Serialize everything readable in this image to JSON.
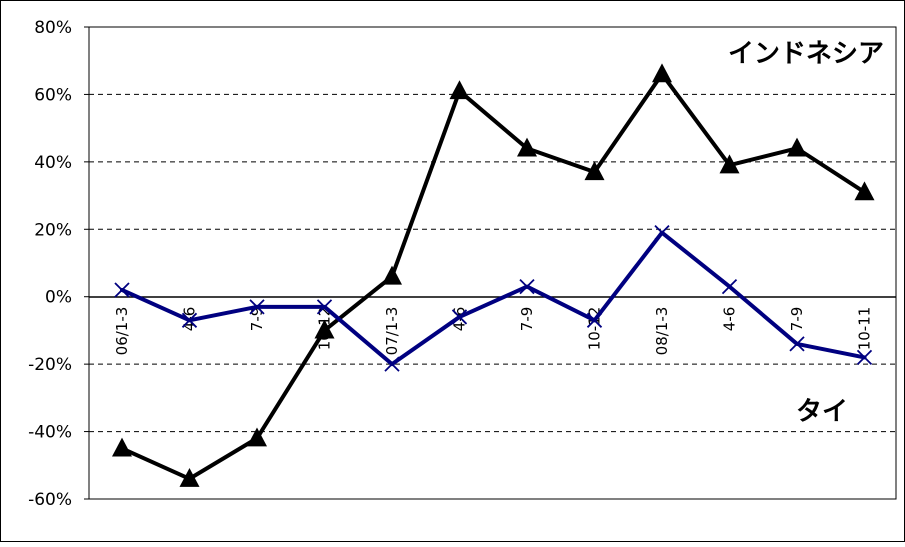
{
  "chart_data": {
    "type": "line",
    "categories": [
      "06/1-3",
      "4-6",
      "7-9",
      "10-12",
      "07/1-3",
      "4-6",
      "7-9",
      "10-12",
      "08/1-3",
      "4-6",
      "7-9",
      "10-11"
    ],
    "series": [
      {
        "name": "インドネシア",
        "color": "#000000",
        "marker": "triangle",
        "values": [
          -45,
          -54,
          -42,
          -10,
          6,
          61,
          44,
          37,
          66,
          39,
          44,
          31
        ]
      },
      {
        "name": "タイ",
        "color": "#000080",
        "marker": "x",
        "values": [
          2,
          -7,
          -3,
          -3,
          -20,
          -6,
          3,
          -7,
          19,
          3,
          -14,
          -18
        ]
      }
    ],
    "yticks": [
      "80%",
      "60%",
      "40%",
      "20%",
      "0%",
      "-20%",
      "-40%",
      "-60%"
    ],
    "ylim": [
      -60,
      80
    ],
    "title": "",
    "xlabel": "",
    "ylabel": "",
    "grid": "horizontal-dashed",
    "legend": "inline-labels"
  }
}
